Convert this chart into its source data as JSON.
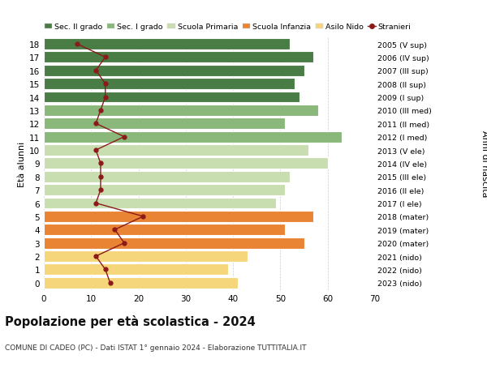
{
  "ages": [
    0,
    1,
    2,
    3,
    4,
    5,
    6,
    7,
    8,
    9,
    10,
    11,
    12,
    13,
    14,
    15,
    16,
    17,
    18
  ],
  "bar_values": [
    41,
    39,
    43,
    55,
    51,
    57,
    49,
    51,
    52,
    60,
    56,
    63,
    51,
    58,
    54,
    53,
    55,
    57,
    52
  ],
  "bar_colors": [
    "#f5d67a",
    "#f5d67a",
    "#f5d67a",
    "#e88434",
    "#e88434",
    "#e88434",
    "#c8ddb0",
    "#c8ddb0",
    "#c8ddb0",
    "#c8ddb0",
    "#c8ddb0",
    "#8ab87a",
    "#8ab87a",
    "#8ab87a",
    "#4a7c45",
    "#4a7c45",
    "#4a7c45",
    "#4a7c45",
    "#4a7c45"
  ],
  "stranieri_values": [
    14,
    13,
    11,
    17,
    15,
    21,
    11,
    12,
    12,
    12,
    11,
    17,
    11,
    12,
    13,
    13,
    11,
    13,
    7
  ],
  "right_labels": [
    "2023 (nido)",
    "2022 (nido)",
    "2021 (nido)",
    "2020 (mater)",
    "2019 (mater)",
    "2018 (mater)",
    "2017 (I ele)",
    "2016 (II ele)",
    "2015 (III ele)",
    "2014 (IV ele)",
    "2013 (V ele)",
    "2012 (I med)",
    "2011 (II med)",
    "2010 (III med)",
    "2009 (I sup)",
    "2008 (II sup)",
    "2007 (III sup)",
    "2006 (IV sup)",
    "2005 (V sup)"
  ],
  "legend_labels": [
    "Sec. II grado",
    "Sec. I grado",
    "Scuola Primaria",
    "Scuola Infanzia",
    "Asilo Nido",
    "Stranieri"
  ],
  "legend_colors": [
    "#4a7c45",
    "#8ab87a",
    "#c8ddb0",
    "#e88434",
    "#f5d67a",
    "#8b1a1a"
  ],
  "ylabel_left": "Età alunni",
  "ylabel_right": "Anni di nascita",
  "title": "Popolazione per età scolastica - 2024",
  "subtitle": "COMUNE DI CADEO (PC) - Dati ISTAT 1° gennaio 2024 - Elaborazione TUTTITALIA.IT",
  "xlim": [
    0,
    70
  ],
  "xticks": [
    0,
    10,
    20,
    30,
    40,
    50,
    60,
    70
  ],
  "background_color": "#ffffff",
  "bar_edge_color": "#ffffff",
  "plot_bg_color": "#ffffff",
  "stranieri_line_color": "#8b1a1a",
  "stranieri_marker_color": "#8b1a1a"
}
